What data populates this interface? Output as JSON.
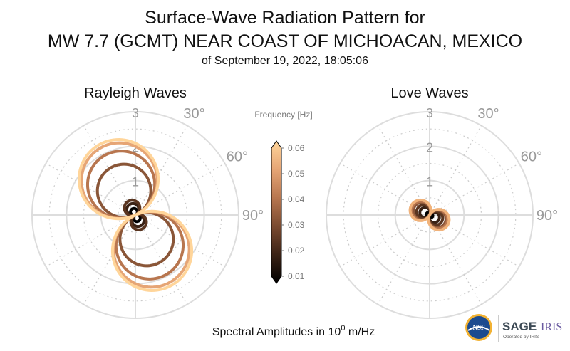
{
  "header": {
    "title_line1": "Surface-Wave Radiation Pattern for",
    "title_line2": "MW 7.7 (GCMT) NEAR COAST OF MICHOACAN, MEXICO",
    "subtitle": "of September 19, 2022, 18:05:06"
  },
  "footer": {
    "amplitude_label_prefix": "Spectral Amplitudes in 10",
    "amplitude_label_exponent": "0",
    "amplitude_label_suffix": " m/Hz"
  },
  "logos": {
    "nsf": "NSF",
    "sage": "SAGE",
    "iris": "IRIS",
    "operated_by": "Operated by IRIS"
  },
  "colorbar": {
    "label": "Frequency [Hz]",
    "ticks": [
      "0.06",
      "0.05",
      "0.04",
      "0.03",
      "0.02",
      "0.01"
    ],
    "range": [
      0.01,
      0.06
    ],
    "colormap": [
      "#000000",
      "#3a2215",
      "#7a4a30",
      "#b8764f",
      "#e6a575",
      "#ffd59a"
    ]
  },
  "chart_data": [
    {
      "type": "polar",
      "title": "Rayleigh Waves",
      "r_ticks": [
        "1",
        "2",
        "3"
      ],
      "r_max": 3,
      "angle_labels": [
        "30°",
        "60°",
        "90°"
      ],
      "grid": true,
      "series_shape": "two-lobe",
      "lobe_axis_deg": 155,
      "series": [
        {
          "frequency": 0.01,
          "color": "#000000",
          "max_amplitude": 0.2
        },
        {
          "frequency": 0.02,
          "color": "#3a2215",
          "max_amplitude": 0.35
        },
        {
          "frequency": 0.03,
          "color": "#5a3520",
          "max_amplitude": 0.45
        },
        {
          "frequency": 0.04,
          "color": "#8a5638",
          "max_amplitude": 1.55
        },
        {
          "frequency": 0.05,
          "color": "#b8764f",
          "max_amplitude": 1.95
        },
        {
          "frequency": 0.055,
          "color": "#e6a575",
          "max_amplitude": 2.2
        },
        {
          "frequency": 0.06,
          "color": "#ffd59a",
          "max_amplitude": 2.3
        }
      ]
    },
    {
      "type": "polar",
      "title": "Love Waves",
      "r_ticks": [
        "1",
        "2",
        "3"
      ],
      "r_max": 3,
      "angle_labels": [
        "30°",
        "60°",
        "90°"
      ],
      "grid": true,
      "series_shape": "two-lobe",
      "lobe_axis_deg": 117,
      "series": [
        {
          "frequency": 0.01,
          "color": "#000000",
          "max_amplitude": 0.1
        },
        {
          "frequency": 0.02,
          "color": "#3a2215",
          "max_amplitude": 0.3
        },
        {
          "frequency": 0.03,
          "color": "#5a3520",
          "max_amplitude": 0.4
        },
        {
          "frequency": 0.04,
          "color": "#8a5638",
          "max_amplitude": 0.5
        },
        {
          "frequency": 0.05,
          "color": "#b8764f",
          "max_amplitude": 0.55
        },
        {
          "frequency": 0.06,
          "color": "#f0b27a",
          "max_amplitude": 0.6
        }
      ]
    }
  ]
}
